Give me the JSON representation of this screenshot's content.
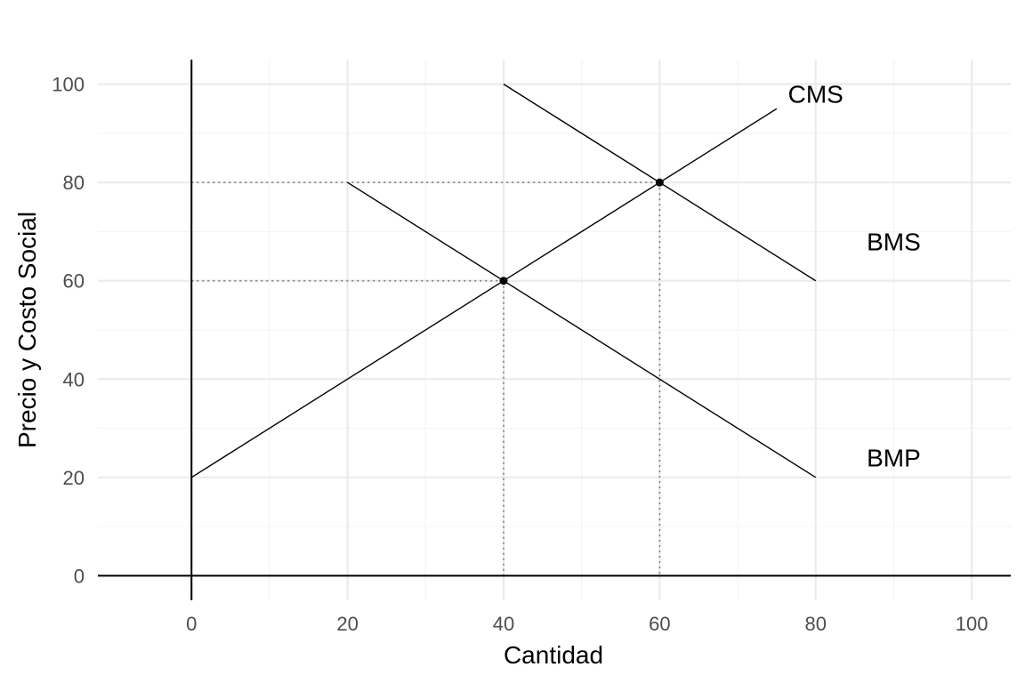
{
  "chart_data": {
    "type": "line",
    "title": "",
    "xlabel": "Cantidad",
    "ylabel": "Precio y Costo Social",
    "xlim": [
      -12,
      105
    ],
    "ylim": [
      -5,
      105
    ],
    "x_ticks": [
      0,
      20,
      40,
      60,
      80,
      100
    ],
    "y_ticks": [
      0,
      20,
      40,
      60,
      80,
      100
    ],
    "grid": true,
    "series": [
      {
        "name": "CMS",
        "x": [
          0,
          75
        ],
        "y": [
          20,
          95
        ]
      },
      {
        "name": "BMS",
        "x": [
          40,
          80
        ],
        "y": [
          100,
          60
        ]
      },
      {
        "name": "BMP",
        "x": [
          20,
          80
        ],
        "y": [
          80,
          20
        ]
      }
    ],
    "labels": [
      {
        "text": "CMS",
        "x": 80,
        "y": 98
      },
      {
        "text": "BMS",
        "x": 90,
        "y": 68
      },
      {
        "text": "BMP",
        "x": 90,
        "y": 24
      }
    ],
    "points": [
      {
        "x": 40,
        "y": 60
      },
      {
        "x": 60,
        "y": 80
      }
    ],
    "guides": [
      {
        "x": 40,
        "y": 60
      },
      {
        "x": 60,
        "y": 80
      }
    ]
  }
}
